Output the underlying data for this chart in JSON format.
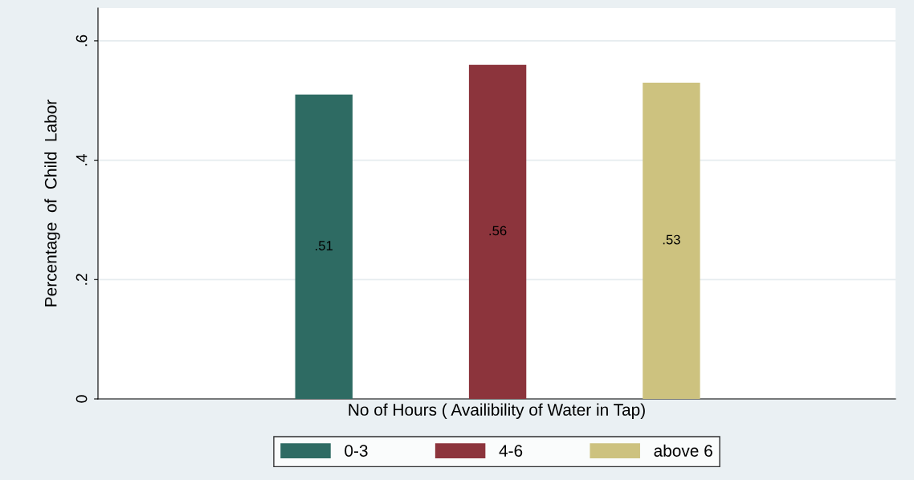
{
  "chart_data": {
    "type": "bar",
    "xlabel": "No of Hours ( Availibility of Water in Tap)",
    "ylabel": "Percentage  of  Child  Labor",
    "categories": [
      null
    ],
    "series": [
      {
        "name": "0-3",
        "color": "#2e6b63",
        "values": [
          0.51
        ],
        "value_labels": [
          ".51"
        ]
      },
      {
        "name": "4-6",
        "color": "#8c343c",
        "values": [
          0.56
        ],
        "value_labels": [
          ".56"
        ]
      },
      {
        "name": "above 6",
        "color": "#cdc27f",
        "values": [
          0.53
        ],
        "value_labels": [
          ".53"
        ]
      }
    ],
    "ylim": [
      0,
      0.655
    ],
    "yticks": [
      0,
      {
        "value": 0.2,
        "label": ".2"
      },
      {
        "value": 0.4,
        "label": ".4"
      },
      {
        "value": 0.6,
        "label": ".6"
      }
    ],
    "grid": "y",
    "legend": "bottom"
  }
}
